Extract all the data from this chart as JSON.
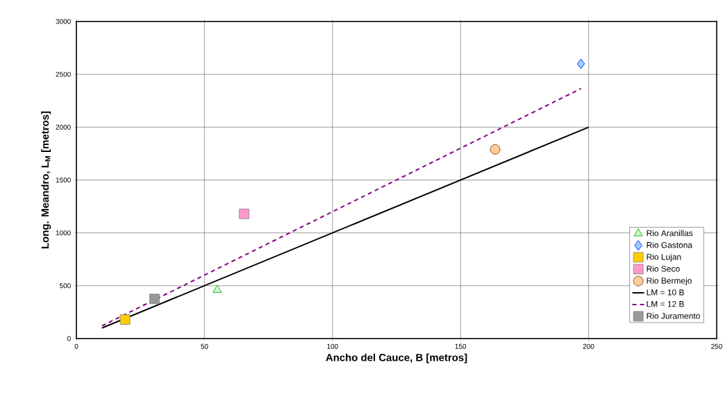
{
  "chart_data": {
    "type": "scatter",
    "xlabel": "Ancho del Cauce, B [metros]",
    "ylabel": "Long. Meandro, L$_{M}$ [metros]",
    "xlim": [
      0,
      250
    ],
    "ylim": [
      0,
      3000
    ],
    "xticks": [
      0,
      50,
      100,
      150,
      200,
      250
    ],
    "yticks": [
      0,
      500,
      1000,
      1500,
      2000,
      2500,
      3000
    ],
    "grid": true,
    "legend": "bottom right",
    "series": [
      {
        "name": "Rio Aranillas",
        "marker": "triangle",
        "color": "#ccffcc",
        "x": [
          55
        ],
        "values": [
          460
        ]
      },
      {
        "name": "Rio Gastona",
        "marker": "diamond",
        "color": "#99ccff",
        "x": [
          197
        ],
        "values": [
          2600
        ]
      },
      {
        "name": "Rio Lujan",
        "marker": "square",
        "color": "#ffcc00",
        "x": [
          19
        ],
        "values": [
          180
        ]
      },
      {
        "name": "Rio Seco",
        "marker": "square",
        "color": "#ff99cc",
        "x": [
          65.5
        ],
        "values": [
          1180
        ]
      },
      {
        "name": "Rio Bermejo",
        "marker": "circle",
        "color": "#ffcc99",
        "x": [
          163.5
        ],
        "values": [
          1790
        ]
      },
      {
        "name": "LM = 10 B",
        "type": "line",
        "line_style": "solid",
        "color": "#000000",
        "x": [
          10,
          200
        ],
        "values": [
          100,
          2000
        ]
      },
      {
        "name": "LM = 12 B",
        "type": "line",
        "line_style": "dashed",
        "color": "#800080",
        "x": [
          10,
          197
        ],
        "values": [
          120,
          2365
        ]
      },
      {
        "name": "Rio Juramento",
        "marker": "square",
        "color": "#999999",
        "x": [
          30.5
        ],
        "values": [
          375
        ]
      }
    ]
  }
}
